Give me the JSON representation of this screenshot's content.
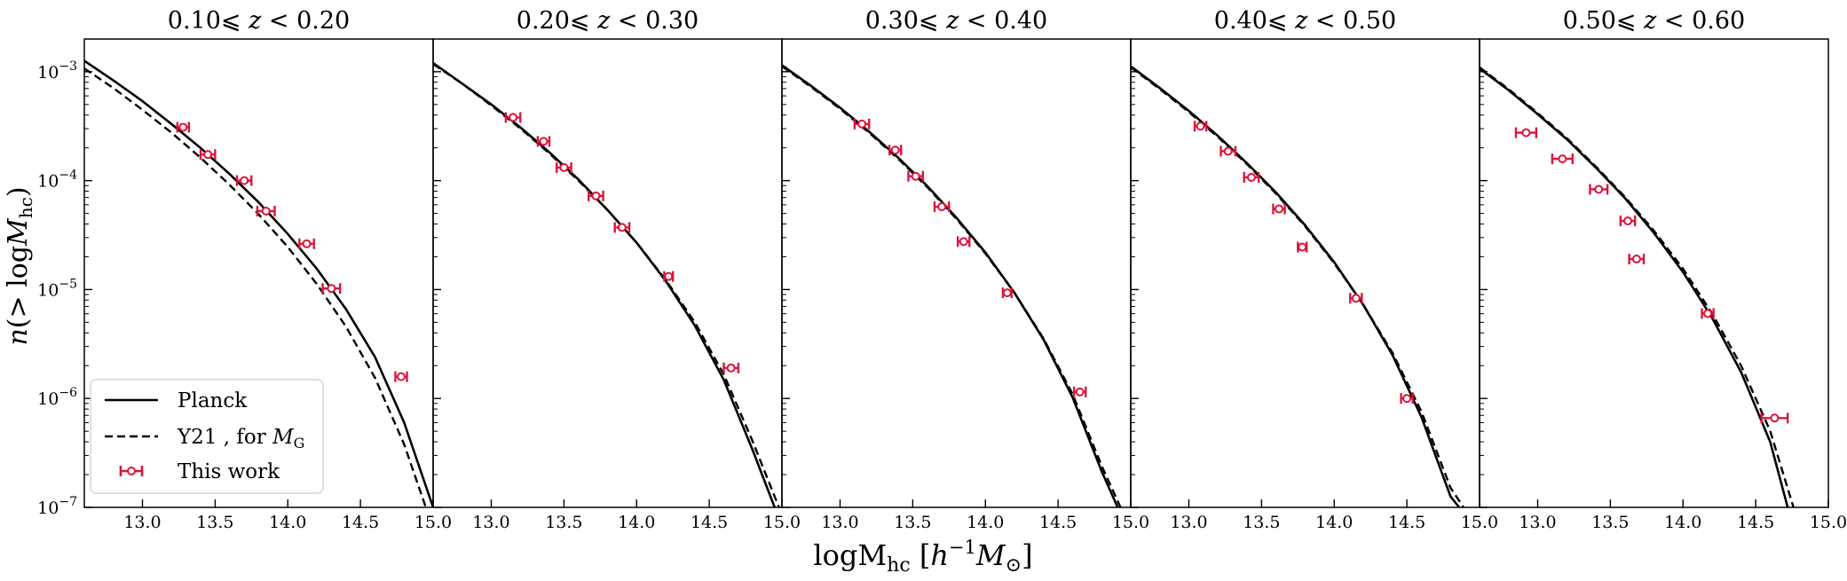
{
  "chart_data": {
    "type": "line",
    "shared_xlabel": "logM_hc [h^-1 M_⊙]",
    "shared_xlabel_parts": {
      "main": "logM",
      "sub": "hc",
      "open": " [",
      "h": "h",
      "exp": "−1",
      "m": "M",
      "sun": "⊙",
      "close": "]"
    },
    "shared_ylabel": "n(> logM_hc)",
    "shared_ylabel_parts": {
      "main": "n",
      "paren": "(> log",
      "m": "M",
      "sub": "hc",
      "close": ")"
    },
    "yscale": "log",
    "ylim_exp": [
      -7,
      -2.7
    ],
    "xlim": [
      12.6,
      15.0
    ],
    "xticks": [
      13.0,
      13.5,
      14.0,
      14.5,
      15.0
    ],
    "xtick_labels": [
      "13.0",
      "13.5",
      "14.0",
      "14.5",
      "15.0"
    ],
    "yticks_exp": [
      -7,
      -6,
      -5,
      -4,
      -3
    ],
    "ytick_labels": [
      {
        "base": "10",
        "exp": "−7"
      },
      {
        "base": "10",
        "exp": "−6"
      },
      {
        "base": "10",
        "exp": "−5"
      },
      {
        "base": "10",
        "exp": "−4"
      },
      {
        "base": "10",
        "exp": "−3"
      }
    ],
    "legend": {
      "location": "lower-left",
      "entries": [
        {
          "label": "Planck",
          "style": "solid"
        },
        {
          "label": "Y21 , for",
          "label_math": "M",
          "label_sub": "G",
          "style": "dashed"
        },
        {
          "label": "This work",
          "style": "errorbar",
          "color": "#dc143c"
        }
      ]
    },
    "colors": {
      "model": "#000000",
      "data": "#dc143c"
    },
    "panels": [
      {
        "title": "0.10⩽ z < 0.20",
        "title_parts": {
          "lo": "0.10⩽ ",
          "z": "z",
          "hi": " < 0.20"
        },
        "planck": {
          "x": [
            12.6,
            12.8,
            13.0,
            13.2,
            13.4,
            13.6,
            13.8,
            14.0,
            14.2,
            14.4,
            14.6,
            14.8,
            15.0
          ],
          "log_n": [
            -2.9,
            -3.08,
            -3.27,
            -3.48,
            -3.7,
            -3.94,
            -4.2,
            -4.49,
            -4.81,
            -5.18,
            -5.62,
            -6.22,
            -7.0
          ]
        },
        "y21": {
          "x": [
            12.6,
            12.8,
            13.0,
            13.2,
            13.4,
            13.6,
            13.8,
            14.0,
            14.2,
            14.4,
            14.6,
            14.8,
            14.95
          ],
          "log_n": [
            -2.97,
            -3.15,
            -3.35,
            -3.56,
            -3.79,
            -4.04,
            -4.31,
            -4.61,
            -4.95,
            -5.34,
            -5.81,
            -6.42,
            -7.0
          ]
        },
        "points": [
          {
            "x": 13.28,
            "log_n": -3.51,
            "xerr": 0.04
          },
          {
            "x": 13.45,
            "log_n": -3.76,
            "xerr": 0.05
          },
          {
            "x": 13.7,
            "log_n": -4.0,
            "xerr": 0.05
          },
          {
            "x": 13.85,
            "log_n": -4.28,
            "xerr": 0.06
          },
          {
            "x": 14.13,
            "log_n": -4.58,
            "xerr": 0.05
          },
          {
            "x": 14.3,
            "log_n": -4.99,
            "xerr": 0.06
          },
          {
            "x": 14.78,
            "log_n": -5.8,
            "xerr": 0.04
          }
        ]
      },
      {
        "title": "0.20⩽ z < 0.30",
        "title_parts": {
          "lo": "0.20⩽ ",
          "z": "z",
          "hi": " < 0.30"
        },
        "planck": {
          "x": [
            12.6,
            12.8,
            13.0,
            13.2,
            13.4,
            13.6,
            13.8,
            14.0,
            14.2,
            14.4,
            14.6,
            14.8,
            14.95
          ],
          "log_n": [
            -2.92,
            -3.11,
            -3.3,
            -3.51,
            -3.74,
            -3.99,
            -4.27,
            -4.57,
            -4.92,
            -5.33,
            -5.83,
            -6.48,
            -7.0
          ]
        },
        "y21": {
          "x": [
            12.6,
            12.8,
            13.0,
            13.2,
            13.4,
            13.6,
            13.8,
            14.0,
            14.2,
            14.4,
            14.6,
            14.8,
            14.98
          ],
          "log_n": [
            -2.93,
            -3.11,
            -3.31,
            -3.52,
            -3.75,
            -4.0,
            -4.27,
            -4.57,
            -4.91,
            -5.3,
            -5.78,
            -6.4,
            -7.0
          ]
        },
        "points": [
          {
            "x": 13.15,
            "log_n": -3.42,
            "xerr": 0.05
          },
          {
            "x": 13.36,
            "log_n": -3.64,
            "xerr": 0.04
          },
          {
            "x": 13.5,
            "log_n": -3.88,
            "xerr": 0.05
          },
          {
            "x": 13.72,
            "log_n": -4.14,
            "xerr": 0.05
          },
          {
            "x": 13.9,
            "log_n": -4.43,
            "xerr": 0.05
          },
          {
            "x": 14.22,
            "log_n": -4.88,
            "xerr": 0.03
          },
          {
            "x": 14.65,
            "log_n": -5.72,
            "xerr": 0.05
          }
        ]
      },
      {
        "title": "0.30⩽ z < 0.40",
        "title_parts": {
          "lo": "0.30⩽ ",
          "z": "z",
          "hi": " < 0.40"
        },
        "planck": {
          "x": [
            12.6,
            12.8,
            13.0,
            13.2,
            13.4,
            13.6,
            13.8,
            14.0,
            14.2,
            14.4,
            14.6,
            14.8,
            14.91
          ],
          "log_n": [
            -2.94,
            -3.13,
            -3.33,
            -3.55,
            -3.79,
            -4.05,
            -4.34,
            -4.66,
            -5.03,
            -5.46,
            -5.99,
            -6.67,
            -7.0
          ]
        },
        "y21": {
          "x": [
            12.6,
            12.8,
            13.0,
            13.2,
            13.4,
            13.6,
            13.8,
            14.0,
            14.2,
            14.4,
            14.6,
            14.8,
            14.93
          ],
          "log_n": [
            -2.95,
            -3.14,
            -3.34,
            -3.56,
            -3.8,
            -4.06,
            -4.35,
            -4.67,
            -5.03,
            -5.45,
            -5.96,
            -6.62,
            -7.0
          ]
        },
        "points": [
          {
            "x": 13.15,
            "log_n": -3.48,
            "xerr": 0.05
          },
          {
            "x": 13.38,
            "log_n": -3.72,
            "xerr": 0.04
          },
          {
            "x": 13.52,
            "log_n": -3.96,
            "xerr": 0.05
          },
          {
            "x": 13.7,
            "log_n": -4.24,
            "xerr": 0.05
          },
          {
            "x": 13.85,
            "log_n": -4.56,
            "xerr": 0.04
          },
          {
            "x": 14.15,
            "log_n": -5.03,
            "xerr": 0.03
          },
          {
            "x": 14.65,
            "log_n": -5.94,
            "xerr": 0.04
          }
        ]
      },
      {
        "title": "0.40⩽ z < 0.50",
        "title_parts": {
          "lo": "0.40⩽ ",
          "z": "z",
          "hi": " < 0.50"
        },
        "planck": {
          "x": [
            12.6,
            12.8,
            13.0,
            13.2,
            13.4,
            13.6,
            13.8,
            14.0,
            14.2,
            14.4,
            14.6,
            14.8,
            14.86
          ],
          "log_n": [
            -2.95,
            -3.15,
            -3.36,
            -3.59,
            -3.84,
            -4.11,
            -4.41,
            -4.75,
            -5.14,
            -5.6,
            -6.17,
            -6.9,
            -7.0
          ]
        },
        "y21": {
          "x": [
            12.6,
            12.8,
            13.0,
            13.2,
            13.4,
            13.6,
            13.8,
            14.0,
            14.2,
            14.4,
            14.6,
            14.8,
            14.89
          ],
          "log_n": [
            -2.96,
            -3.16,
            -3.37,
            -3.6,
            -3.85,
            -4.12,
            -4.42,
            -4.76,
            -5.14,
            -5.58,
            -6.12,
            -6.82,
            -7.0
          ]
        },
        "points": [
          {
            "x": 13.08,
            "log_n": -3.5,
            "xerr": 0.04
          },
          {
            "x": 13.27,
            "log_n": -3.73,
            "xerr": 0.05
          },
          {
            "x": 13.43,
            "log_n": -3.97,
            "xerr": 0.05
          },
          {
            "x": 13.62,
            "log_n": -4.26,
            "xerr": 0.04
          },
          {
            "x": 13.78,
            "log_n": -4.61,
            "xerr": 0.03
          },
          {
            "x": 14.15,
            "log_n": -5.08,
            "xerr": 0.04
          },
          {
            "x": 14.5,
            "log_n": -6.0,
            "xerr": 0.04
          }
        ]
      },
      {
        "title": "0.50⩽ z < 0.60",
        "title_parts": {
          "lo": "0.50⩽ ",
          "z": "z",
          "hi": " < 0.60"
        },
        "planck": {
          "x": [
            12.6,
            12.8,
            13.0,
            13.2,
            13.4,
            13.6,
            13.8,
            14.0,
            14.2,
            14.4,
            14.6,
            14.72
          ],
          "log_n": [
            -2.97,
            -3.17,
            -3.39,
            -3.62,
            -3.88,
            -4.16,
            -4.48,
            -4.84,
            -5.26,
            -5.76,
            -6.4,
            -7.0
          ]
        },
        "y21": {
          "x": [
            12.6,
            12.8,
            13.0,
            13.2,
            13.4,
            13.6,
            13.8,
            14.0,
            14.2,
            14.4,
            14.6,
            14.76
          ],
          "log_n": [
            -2.96,
            -3.16,
            -3.38,
            -3.61,
            -3.87,
            -4.15,
            -4.46,
            -4.81,
            -5.22,
            -5.7,
            -6.3,
            -7.0
          ]
        },
        "points": [
          {
            "x": 12.92,
            "log_n": -3.56,
            "xerr": 0.07
          },
          {
            "x": 13.17,
            "log_n": -3.8,
            "xerr": 0.07
          },
          {
            "x": 13.42,
            "log_n": -4.08,
            "xerr": 0.06
          },
          {
            "x": 13.62,
            "log_n": -4.37,
            "xerr": 0.05
          },
          {
            "x": 13.68,
            "log_n": -4.72,
            "xerr": 0.05
          },
          {
            "x": 14.17,
            "log_n": -5.22,
            "xerr": 0.04
          },
          {
            "x": 14.63,
            "log_n": -6.18,
            "xerr": 0.09
          }
        ]
      }
    ]
  }
}
